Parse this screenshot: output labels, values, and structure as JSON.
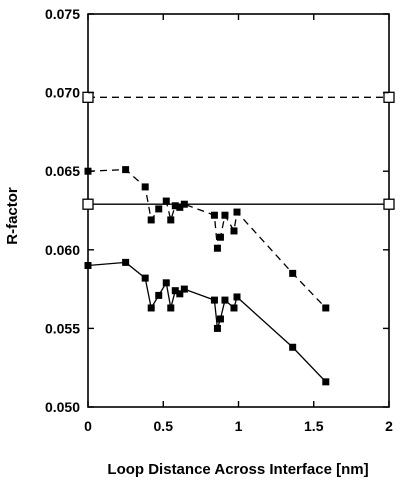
{
  "chart_data": {
    "type": "line",
    "title": "",
    "xlabel": "Loop Distance Across Interface [nm]",
    "ylabel": "R-factor",
    "xlim": [
      0,
      2
    ],
    "ylim": [
      0.05,
      0.075
    ],
    "x_ticks": [
      0,
      0.5,
      1,
      1.5,
      2
    ],
    "x_tick_labels": [
      "0",
      "0.5",
      "1",
      "1.5",
      "2"
    ],
    "y_ticks": [
      0.05,
      0.055,
      0.06,
      0.065,
      0.07,
      0.075
    ],
    "y_tick_labels": [
      "0.050",
      "0.055",
      "0.060",
      "0.065",
      "0.070",
      "0.075"
    ],
    "grid": false,
    "legend": "none",
    "series": [
      {
        "style": "dashed",
        "marker": "open-square",
        "color": "#000000",
        "x": [
          0,
          2
        ],
        "y": [
          0.0697,
          0.0697
        ]
      },
      {
        "style": "solid",
        "marker": "open-square",
        "color": "#000000",
        "x": [
          0,
          2
        ],
        "y": [
          0.0629,
          0.0629
        ]
      },
      {
        "style": "dashed",
        "marker": "filled-square",
        "color": "#000000",
        "x": [
          0,
          0.25,
          0.38,
          0.42,
          0.47,
          0.52,
          0.55,
          0.58,
          0.61,
          0.64,
          0.84,
          0.86,
          0.88,
          0.91,
          0.97,
          0.99,
          1.36,
          1.58
        ],
        "y": [
          0.065,
          0.0651,
          0.064,
          0.0619,
          0.0626,
          0.0631,
          0.0619,
          0.0628,
          0.0627,
          0.0629,
          0.0622,
          0.0601,
          0.0608,
          0.0622,
          0.0612,
          0.0624,
          0.0585,
          0.0563
        ]
      },
      {
        "style": "solid",
        "marker": "filled-square",
        "color": "#000000",
        "x": [
          0,
          0.25,
          0.38,
          0.42,
          0.47,
          0.52,
          0.55,
          0.58,
          0.61,
          0.64,
          0.84,
          0.86,
          0.88,
          0.91,
          0.97,
          0.99,
          1.36,
          1.58
        ],
        "y": [
          0.059,
          0.0592,
          0.0582,
          0.0563,
          0.0571,
          0.0579,
          0.0563,
          0.0574,
          0.0572,
          0.0575,
          0.0568,
          0.055,
          0.0556,
          0.0568,
          0.0563,
          0.057,
          0.0538,
          0.0516
        ]
      }
    ]
  }
}
